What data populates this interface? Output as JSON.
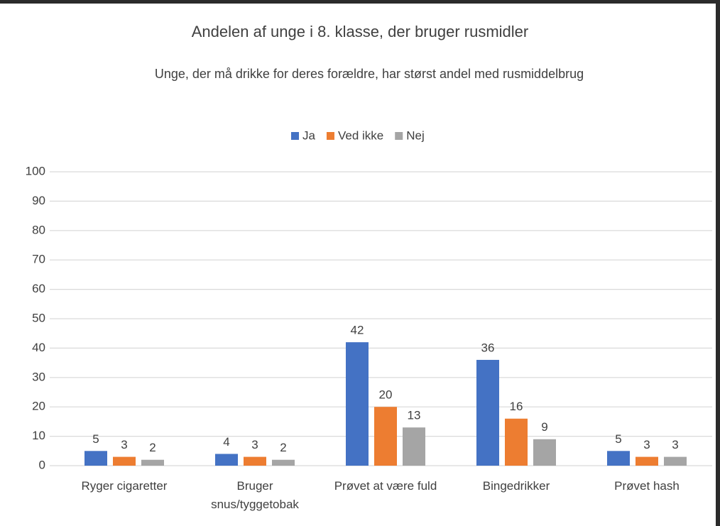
{
  "chart_data": {
    "type": "bar",
    "title": "Andelen af unge i 8. klasse, der bruger rusmidler",
    "subtitle": "Unge, der må drikke for deres forældre, har størst andel med rusmiddelbrug",
    "categories": [
      "Ryger cigaretter",
      "Bruger\nsnus/tyggetobak",
      "Prøvet at være fuld",
      "Bingedrikker",
      "Prøvet hash"
    ],
    "series": [
      {
        "name": "Ja",
        "color": "#4472c4",
        "values": [
          5,
          4,
          42,
          36,
          5
        ]
      },
      {
        "name": "Ved ikke",
        "color": "#ed7d31",
        "values": [
          3,
          3,
          20,
          16,
          3
        ]
      },
      {
        "name": "Nej",
        "color": "#a5a5a5",
        "values": [
          2,
          2,
          13,
          9,
          3
        ]
      }
    ],
    "ylim": [
      0,
      100
    ],
    "yticks": [
      0,
      10,
      20,
      30,
      40,
      50,
      60,
      70,
      80,
      90,
      100
    ],
    "grid": true,
    "legend": "top"
  }
}
